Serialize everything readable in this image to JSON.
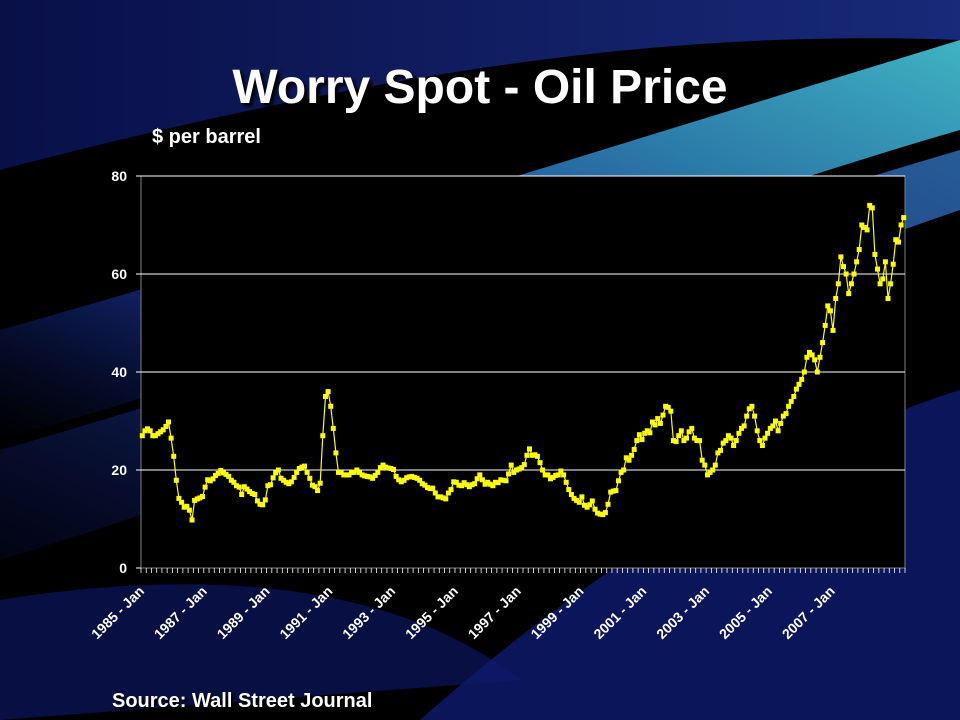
{
  "slide": {
    "title": "Worry Spot - Oil Price",
    "source": "Source: Wall Street Journal"
  },
  "colors": {
    "background": "#000000",
    "plot_background": "#000000",
    "series": "#ffff00",
    "gridline": "#ffffff",
    "text": "#ffffff"
  },
  "chart_data": {
    "type": "line",
    "title": "Worry Spot - Oil Price",
    "ylabel": "$ per barrel",
    "xlabel": "",
    "ylim": [
      0,
      80
    ],
    "yticks": [
      0,
      20,
      40,
      60,
      80
    ],
    "grid": true,
    "legend": "none",
    "x_tick_labels": [
      "1985 - Jan",
      "1987 - Jan",
      "1989 - Jan",
      "1991 - Jan",
      "1993 - Jan",
      "1995 - Jan",
      "1997 - Jan",
      "1999 - Jan",
      "2001 - Jan",
      "2003 - Jan",
      "2005 - Jan",
      "2007 - Jan"
    ],
    "x_start": "1985-01",
    "x_end": "2007-12",
    "frequency": "monthly",
    "series": [
      {
        "values": [
          27.0,
          28.0,
          28.4,
          28.0,
          27.0,
          27.0,
          27.4,
          27.8,
          28.2,
          28.9,
          29.8,
          26.5,
          22.8,
          17.9,
          14.2,
          13.4,
          12.4,
          12.6,
          11.8,
          9.8,
          13.8,
          14.1,
          14.3,
          14.6,
          16.5,
          18.0,
          17.8,
          18.2,
          18.9,
          19.3,
          19.9,
          19.4,
          19.1,
          18.7,
          17.9,
          17.5,
          16.8,
          16.5,
          15.0,
          16.6,
          16.1,
          15.6,
          15.2,
          15.0,
          13.7,
          13.0,
          12.9,
          13.9,
          16.8,
          17.0,
          18.4,
          19.4,
          20.0,
          18.3,
          17.9,
          17.5,
          17.2,
          17.6,
          18.5,
          19.5,
          20.3,
          20.6,
          20.8,
          19.5,
          18.3,
          16.9,
          16.6,
          15.8,
          17.3,
          27.0,
          35.0,
          36.0,
          33.0,
          28.5,
          23.5,
          19.5,
          19.5,
          19.0,
          19.0,
          19.0,
          19.5,
          19.5,
          20.0,
          19.5,
          19.0,
          18.8,
          18.7,
          18.6,
          18.3,
          18.9,
          19.5,
          20.5,
          21.0,
          20.6,
          20.4,
          20.3,
          20.1,
          18.7,
          18.0,
          17.6,
          17.9,
          18.4,
          18.6,
          18.7,
          18.5,
          18.3,
          17.9,
          17.2,
          16.9,
          16.4,
          16.2,
          16.3,
          15.3,
          14.5,
          14.5,
          14.3,
          14.1,
          15.3,
          16.0,
          17.6,
          17.5,
          16.9,
          16.8,
          17.4,
          17.0,
          16.6,
          17.0,
          17.2,
          18.2,
          19.0,
          18.0,
          17.1,
          17.5,
          17.1,
          16.8,
          17.5,
          17.4,
          18.0,
          17.9,
          17.8,
          19.2,
          21.0,
          19.5,
          20.0,
          20.2,
          20.5,
          21.1,
          23.0,
          24.3,
          23.0,
          23.1,
          22.8,
          21.5,
          20.0,
          19.0,
          19.0,
          18.2,
          18.5,
          18.9,
          19.0,
          19.8,
          19.0,
          17.5,
          16.0,
          15.0,
          14.2,
          13.8,
          13.4,
          14.5,
          12.8,
          12.4,
          12.9,
          13.7,
          12.0,
          11.2,
          11.0,
          10.9,
          11.3,
          13.0,
          15.5,
          15.7,
          15.8,
          17.8,
          19.5,
          20.0,
          22.5,
          22.0,
          23.0,
          24.2,
          26.0,
          27.2,
          26.2,
          27.5,
          28.0,
          27.6,
          29.8,
          29.2,
          30.5,
          29.5,
          31.2,
          33.0,
          32.8,
          32.0,
          26.0,
          25.8,
          27.0,
          28.0,
          26.0,
          26.5,
          27.8,
          28.5,
          26.5,
          26.0,
          26.0,
          22.0,
          21.0,
          19.0,
          19.5,
          20.0,
          21.0,
          23.5,
          24.0,
          25.5,
          26.0,
          27.0,
          26.5,
          25.0,
          26.0,
          27.5,
          28.5,
          29.0,
          31.0,
          32.5,
          33.0,
          31.0,
          28.0,
          26.0,
          25.0,
          26.5,
          27.5,
          28.5,
          29.0,
          30.0,
          28.0,
          29.5,
          31.0,
          31.5,
          33.0,
          34.0,
          35.0,
          36.5,
          37.5,
          38.5,
          40.0,
          43.0,
          44.0,
          43.5,
          42.5,
          40.0,
          43.0,
          46.0,
          49.5,
          53.5,
          52.5,
          48.5,
          55.0,
          58.0,
          63.5,
          61.5,
          60.0,
          56.0,
          58.0,
          60.0,
          62.5,
          65.0,
          70.0,
          69.5,
          69.0,
          74.0,
          73.5,
          64.0,
          61.0,
          58.0,
          59.0,
          62.5,
          55.0,
          58.0,
          62.0,
          67.0,
          66.5,
          70.0,
          71.5
        ]
      }
    ]
  }
}
